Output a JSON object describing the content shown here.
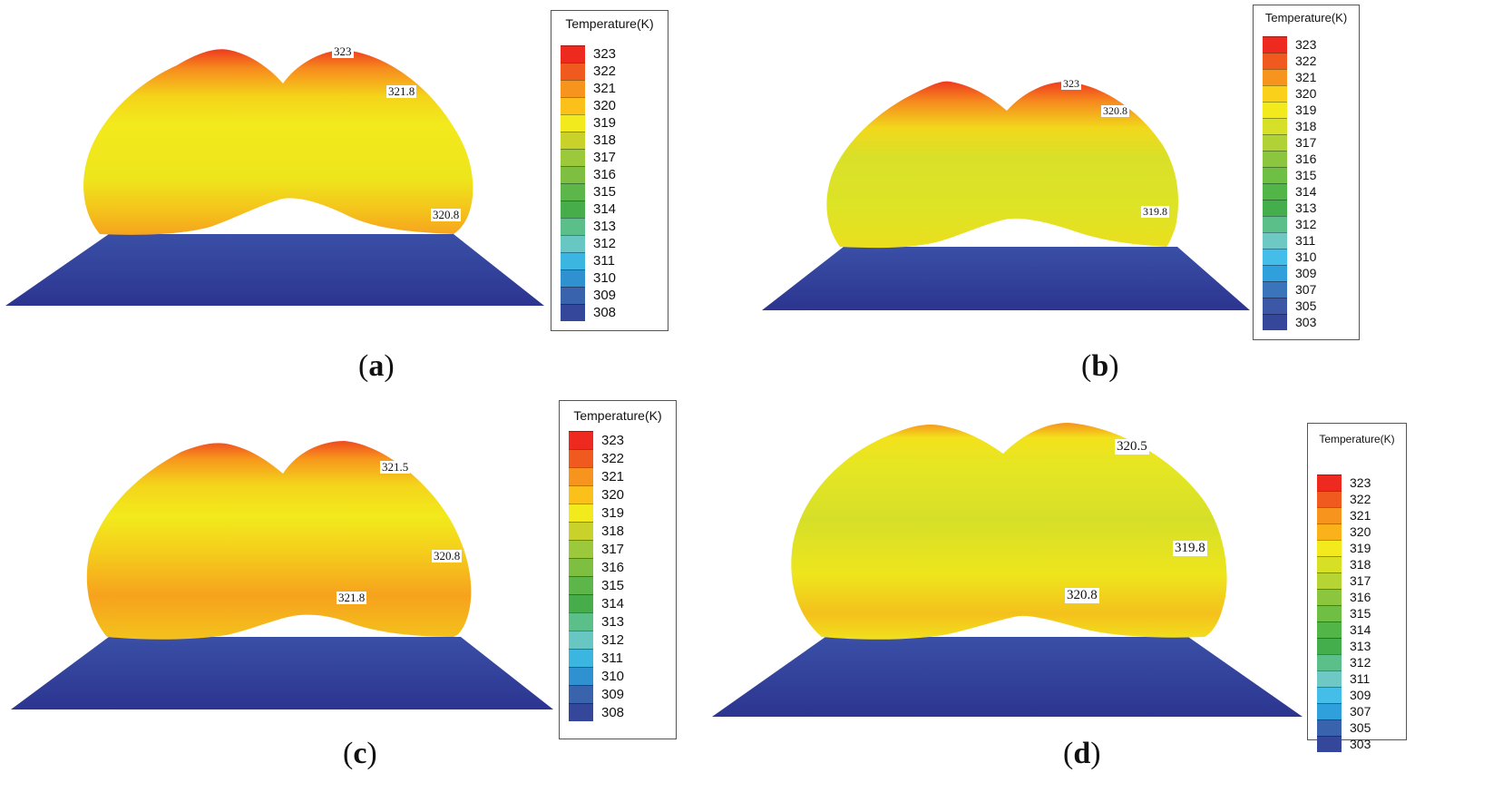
{
  "legend_title": "Temperature(K)",
  "panels": [
    {
      "id": "a",
      "caption_letter": "a",
      "legend_values": [
        "323",
        "322",
        "321",
        "320",
        "319",
        "318",
        "317",
        "316",
        "315",
        "314",
        "313",
        "312",
        "311",
        "310",
        "309",
        "308"
      ],
      "legend_colors": [
        "#ee2a20",
        "#f05a1e",
        "#f7941d",
        "#fbc01a",
        "#f2ea1c",
        "#c8d22a",
        "#9cc93b",
        "#7ebf41",
        "#5db64a",
        "#46ad4a",
        "#5bbf8a",
        "#68c7c2",
        "#3ab6e0",
        "#2f91d0",
        "#3a63ae",
        "#34479b"
      ],
      "annotations": [
        "323",
        "321.8",
        "320.8"
      ]
    },
    {
      "id": "b",
      "caption_letter": "b",
      "legend_values": [
        "323",
        "322",
        "321",
        "320",
        "319",
        "318",
        "317",
        "316",
        "315",
        "314",
        "313",
        "312",
        "311",
        "310",
        "309",
        "307",
        "305",
        "303"
      ],
      "legend_colors": [
        "#ee2a20",
        "#f05a1e",
        "#f7941d",
        "#fbd01a",
        "#f2ea1c",
        "#d6e028",
        "#b0d236",
        "#8cc63f",
        "#6fbf44",
        "#52b548",
        "#44ad4c",
        "#5bbf8a",
        "#6ec8c4",
        "#44bde8",
        "#2fa0dc",
        "#3a75bb",
        "#3b57a5",
        "#34479b"
      ],
      "annotations": [
        "323",
        "320.8",
        "319.8"
      ]
    },
    {
      "id": "c",
      "caption_letter": "c",
      "legend_values": [
        "323",
        "322",
        "321",
        "320",
        "319",
        "318",
        "317",
        "316",
        "315",
        "314",
        "313",
        "312",
        "311",
        "310",
        "309",
        "308"
      ],
      "legend_colors": [
        "#ee2a20",
        "#f05a1e",
        "#f7941d",
        "#fbc01a",
        "#f2ea1c",
        "#c8d22a",
        "#9cc93b",
        "#7ebf41",
        "#5db64a",
        "#46ad4a",
        "#5bbf8a",
        "#68c7c2",
        "#3ab6e0",
        "#2f91d0",
        "#3a63ae",
        "#34479b"
      ],
      "annotations": [
        "321.5",
        "320.8",
        "321.8"
      ]
    },
    {
      "id": "d",
      "caption_letter": "d",
      "legend_values": [
        "323",
        "322",
        "321",
        "320",
        "319",
        "318",
        "317",
        "316",
        "315",
        "314",
        "313",
        "312",
        "311",
        "309",
        "307",
        "305",
        "303"
      ],
      "legend_colors": [
        "#ee2a20",
        "#f05a1e",
        "#f7941d",
        "#fbb21a",
        "#f2ea1c",
        "#d8e026",
        "#b6d434",
        "#8cc63f",
        "#6fbf44",
        "#52b548",
        "#44ad4c",
        "#5bbf8a",
        "#6ec8c4",
        "#44bde8",
        "#2fa0dc",
        "#3a63ae",
        "#34479b"
      ],
      "annotations": [
        "320.5",
        "319.8",
        "320.8"
      ]
    }
  ]
}
